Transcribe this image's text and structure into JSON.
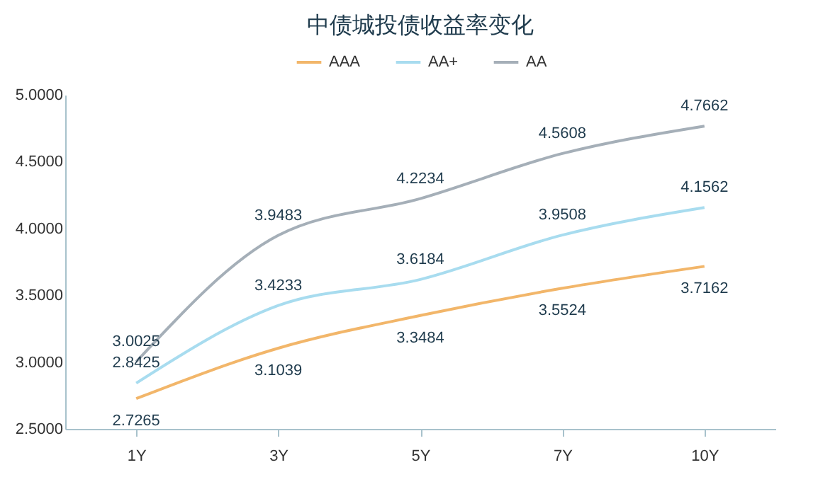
{
  "chart_data": {
    "type": "line",
    "title": "中债城投债收益率变化",
    "categories": [
      "1Y",
      "3Y",
      "5Y",
      "7Y",
      "10Y"
    ],
    "series": [
      {
        "name": "AAA",
        "color": "#f2b66a",
        "values": [
          2.7265,
          3.1039,
          3.3484,
          3.5524,
          3.7162
        ]
      },
      {
        "name": "AA+",
        "color": "#a8dcef",
        "values": [
          2.8425,
          3.4233,
          3.6184,
          3.9508,
          4.1562
        ]
      },
      {
        "name": "AA",
        "color": "#a5afb8",
        "values": [
          3.0025,
          3.9483,
          4.2234,
          4.5608,
          4.7662
        ]
      }
    ],
    "ylim": [
      2.5,
      5.0
    ],
    "yticks": [
      {
        "value": 2.5,
        "label": "2.5000"
      },
      {
        "value": 3.0,
        "label": "3.0000"
      },
      {
        "value": 3.5,
        "label": "3.5000"
      },
      {
        "value": 4.0,
        "label": "4.0000"
      },
      {
        "value": 4.5,
        "label": "4.5000"
      },
      {
        "value": 5.0,
        "label": "5.0000"
      }
    ],
    "grid": false,
    "legend": "top",
    "marker": "none",
    "line_style": "solid",
    "data_labels": true
  }
}
